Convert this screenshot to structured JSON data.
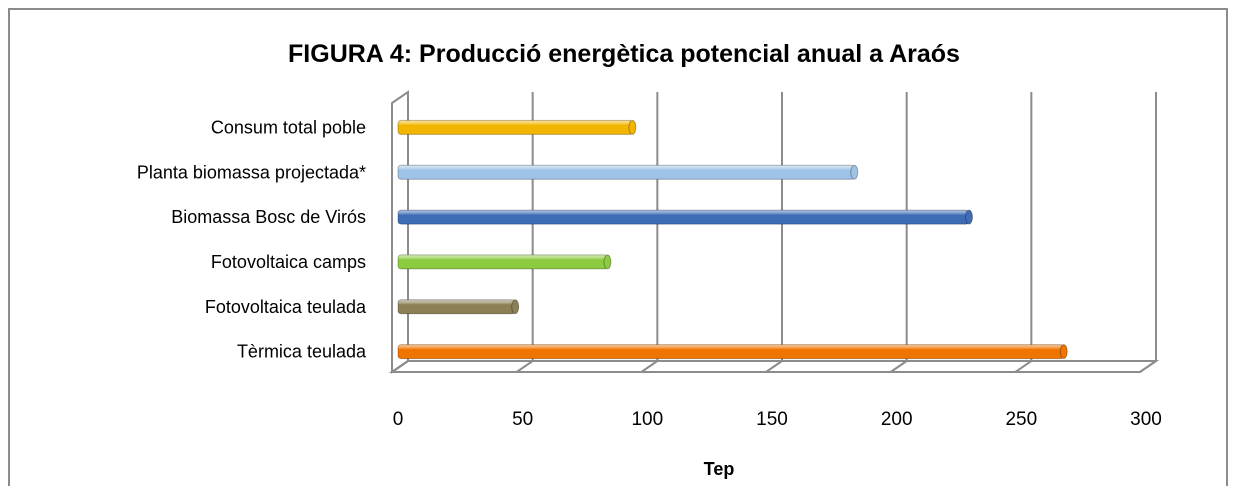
{
  "chart_data": {
    "type": "bar",
    "orientation": "horizontal",
    "title": "FIGURA 4: Producció energètica potencial anual a Araós",
    "xlabel": "Tep",
    "ylabel": "",
    "xlim": [
      0,
      300
    ],
    "xticks": [
      0,
      50,
      100,
      150,
      200,
      250,
      300
    ],
    "grid": "vertical",
    "legend": "none",
    "categories": [
      "Consum total poble",
      "Planta biomassa projectada*",
      "Biomassa Bosc de Virós",
      "Fotovoltaica camps",
      "Fotovoltaica teulada",
      "Tèrmica teulada"
    ],
    "values": [
      94,
      183,
      229,
      84,
      47,
      267
    ],
    "colors": [
      "#F2B500",
      "#9DC3E6",
      "#3E6DB5",
      "#8CCB3F",
      "#8B7F55",
      "#F07400"
    ]
  }
}
